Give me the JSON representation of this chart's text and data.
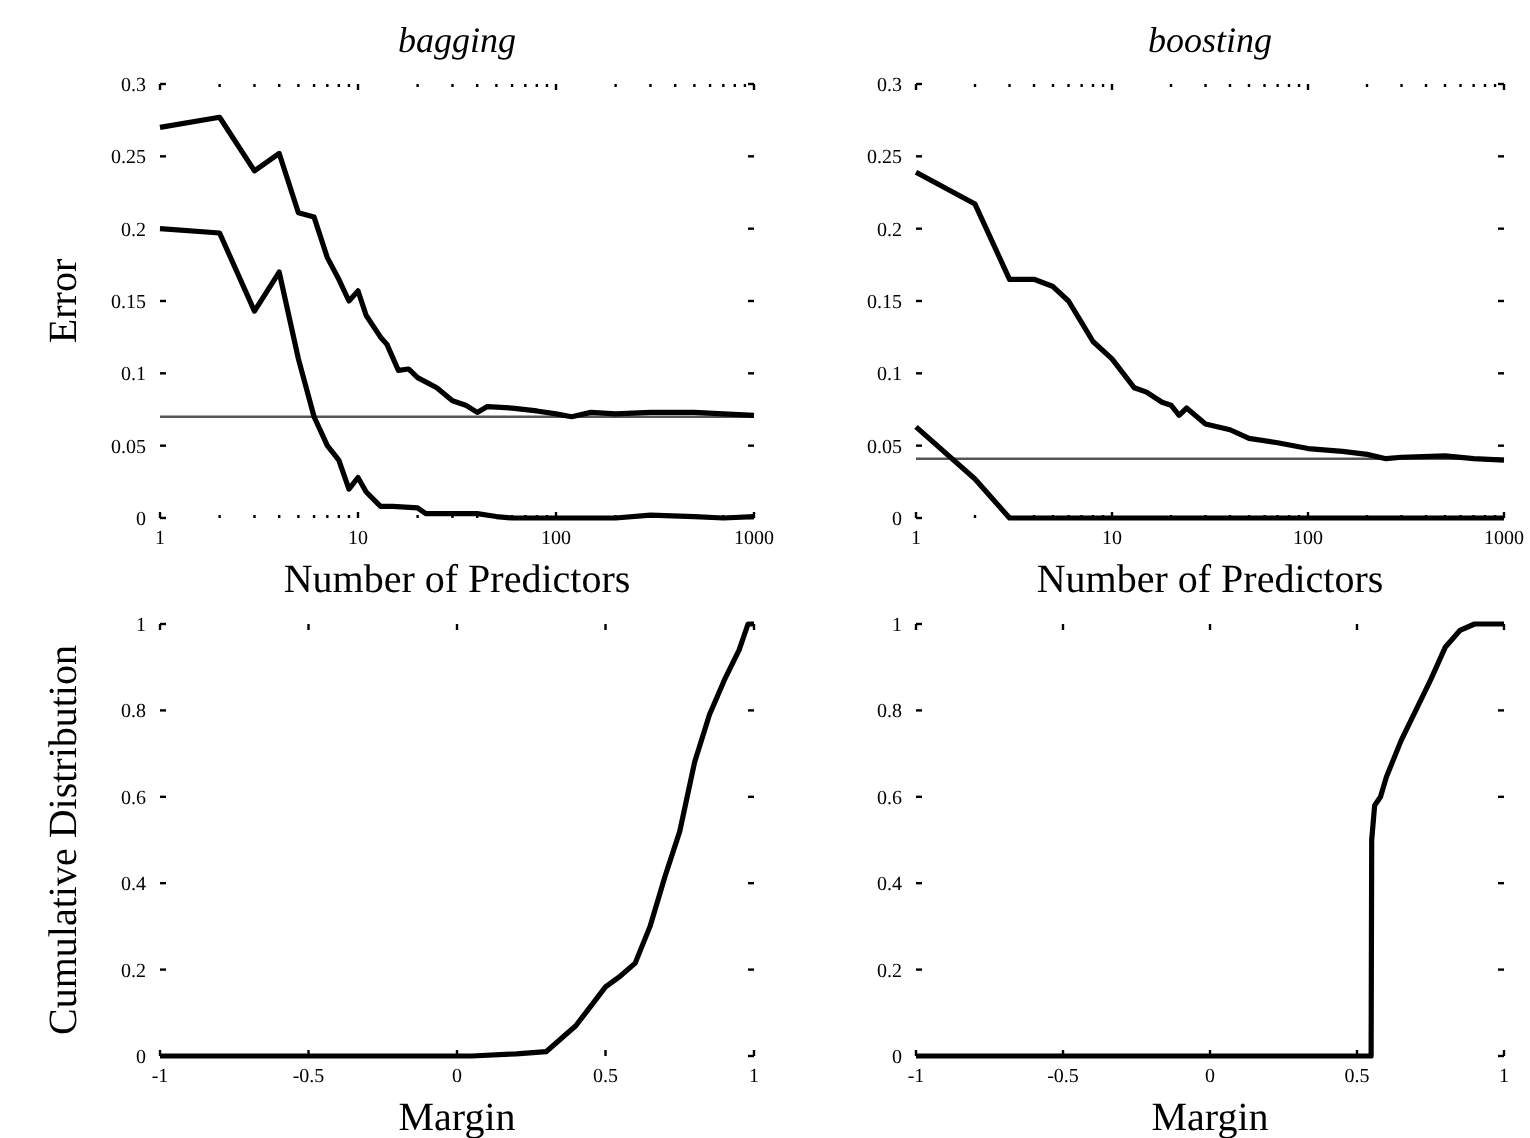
{
  "chart_data": [
    {
      "type": "line",
      "title": "bagging",
      "xlabel": "Number of Predictors",
      "ylabel": "Error",
      "log": "x",
      "xlim": [
        1,
        1000
      ],
      "ylim": [
        0,
        0.3
      ],
      "xticks": [
        1,
        {
          "value": 2,
          "label": null
        },
        {
          "value": 3,
          "label": null
        },
        {
          "value": 4,
          "label": null
        },
        {
          "value": 5,
          "label": null
        },
        {
          "value": 6,
          "label": null
        },
        {
          "value": 7,
          "label": null
        },
        {
          "value": 8,
          "label": null
        },
        {
          "value": 9,
          "label": null
        },
        10,
        {
          "value": 20,
          "label": null
        },
        {
          "value": 30,
          "label": null
        },
        {
          "value": 40,
          "label": null
        },
        {
          "value": 50,
          "label": null
        },
        {
          "value": 60,
          "label": null
        },
        {
          "value": 70,
          "label": null
        },
        {
          "value": 80,
          "label": null
        },
        {
          "value": 90,
          "label": null
        },
        100,
        {
          "value": 200,
          "label": null
        },
        {
          "value": 300,
          "label": null
        },
        {
          "value": 400,
          "label": null
        },
        {
          "value": 500,
          "label": null
        },
        {
          "value": 600,
          "label": null
        },
        {
          "value": 700,
          "label": null
        },
        {
          "value": 800,
          "label": null
        },
        {
          "value": 900,
          "label": null
        },
        1000
      ],
      "yticks": [
        0,
        0.05,
        0.1,
        0.15,
        0.2,
        0.25,
        0.3
      ],
      "ref_lines": [
        {
          "axis": "y",
          "value": 0.07,
          "color": "#555555"
        }
      ],
      "series": [
        {
          "color": "#000000",
          "x": [
            1,
            2,
            3,
            4,
            5,
            6,
            7,
            8,
            9,
            10,
            11,
            13,
            14,
            16,
            18,
            20,
            25,
            30,
            35,
            40,
            45,
            60,
            80,
            100,
            120,
            150,
            200,
            300,
            500,
            700,
            1000
          ],
          "values": [
            0.27,
            0.277,
            0.24,
            0.252,
            0.211,
            0.208,
            0.18,
            0.165,
            0.15,
            0.157,
            0.14,
            0.125,
            0.12,
            0.102,
            0.103,
            0.097,
            0.09,
            0.081,
            0.078,
            0.073,
            0.077,
            0.076,
            0.074,
            0.072,
            0.07,
            0.073,
            0.072,
            0.073,
            0.073,
            0.072,
            0.071
          ]
        },
        {
          "color": "#000000",
          "x": [
            1,
            2,
            3,
            4,
            5,
            6,
            7,
            8,
            9,
            10,
            11,
            13,
            15,
            20,
            22,
            40,
            50,
            60,
            200,
            300,
            500,
            700,
            1000
          ],
          "values": [
            0.2,
            0.197,
            0.143,
            0.17,
            0.11,
            0.07,
            0.05,
            0.04,
            0.02,
            0.028,
            0.018,
            0.008,
            0.008,
            0.007,
            0.003,
            0.003,
            0.001,
            0,
            0,
            0.002,
            0.001,
            0,
            0.001
          ]
        }
      ]
    },
    {
      "type": "line",
      "title": "boosting",
      "xlabel": "Number of Predictors",
      "log": "x",
      "xlim": [
        1,
        1000
      ],
      "ylim": [
        0,
        0.3
      ],
      "xticks": [
        1,
        {
          "value": 2,
          "label": null
        },
        {
          "value": 3,
          "label": null
        },
        {
          "value": 4,
          "label": null
        },
        {
          "value": 5,
          "label": null
        },
        {
          "value": 6,
          "label": null
        },
        {
          "value": 7,
          "label": null
        },
        {
          "value": 8,
          "label": null
        },
        {
          "value": 9,
          "label": null
        },
        10,
        {
          "value": 20,
          "label": null
        },
        {
          "value": 30,
          "label": null
        },
        {
          "value": 40,
          "label": null
        },
        {
          "value": 50,
          "label": null
        },
        {
          "value": 60,
          "label": null
        },
        {
          "value": 70,
          "label": null
        },
        {
          "value": 80,
          "label": null
        },
        {
          "value": 90,
          "label": null
        },
        100,
        {
          "value": 200,
          "label": null
        },
        {
          "value": 300,
          "label": null
        },
        {
          "value": 400,
          "label": null
        },
        {
          "value": 500,
          "label": null
        },
        {
          "value": 600,
          "label": null
        },
        {
          "value": 700,
          "label": null
        },
        {
          "value": 800,
          "label": null
        },
        {
          "value": 900,
          "label": null
        },
        1000
      ],
      "yticks": [
        0,
        0.05,
        0.1,
        0.15,
        0.2,
        0.25,
        0.3
      ],
      "ref_lines": [
        {
          "axis": "y",
          "value": 0.041,
          "color": "#555555"
        }
      ],
      "series": [
        {
          "color": "#000000",
          "x": [
            1,
            2,
            3,
            4,
            5,
            6,
            7,
            8,
            10,
            13,
            15,
            18,
            20,
            22,
            24,
            30,
            40,
            50,
            70,
            100,
            150,
            200,
            250,
            300,
            500,
            700,
            1000
          ],
          "values": [
            0.239,
            0.217,
            0.165,
            0.165,
            0.16,
            0.15,
            0.135,
            0.122,
            0.11,
            0.09,
            0.087,
            0.08,
            0.078,
            0.071,
            0.076,
            0.065,
            0.061,
            0.055,
            0.052,
            0.048,
            0.046,
            0.044,
            0.041,
            0.042,
            0.043,
            0.041,
            0.04
          ]
        },
        {
          "color": "#000000",
          "x": [
            1,
            2,
            3,
            1000
          ],
          "values": [
            0.063,
            0.027,
            0,
            0
          ]
        }
      ]
    },
    {
      "type": "line",
      "xlabel": "Margin",
      "ylabel": "Cumulative Distribution",
      "xlim": [
        -1,
        1
      ],
      "ylim": [
        0,
        1
      ],
      "xticks": [
        -1,
        -0.5,
        0,
        0.5,
        1
      ],
      "yticks": [
        0,
        0.2,
        0.4,
        0.6,
        0.8,
        1
      ],
      "series": [
        {
          "color": "#000000",
          "x": [
            -1,
            0.05,
            0.2,
            0.3,
            0.35,
            0.4,
            0.45,
            0.5,
            0.55,
            0.6,
            0.65,
            0.7,
            0.75,
            0.8,
            0.85,
            0.9,
            0.95,
            0.98,
            1
          ],
          "values": [
            0,
            0,
            0.005,
            0.01,
            0.04,
            0.07,
            0.115,
            0.16,
            0.185,
            0.215,
            0.3,
            0.415,
            0.52,
            0.68,
            0.79,
            0.87,
            0.94,
            1,
            1
          ]
        }
      ]
    },
    {
      "type": "line",
      "xlabel": "Margin",
      "xlim": [
        -1,
        1
      ],
      "ylim": [
        0,
        1
      ],
      "xticks": [
        -1,
        -0.5,
        0,
        0.5,
        1
      ],
      "yticks": [
        0,
        0.2,
        0.4,
        0.6,
        0.8,
        1
      ],
      "series": [
        {
          "color": "#000000",
          "x": [
            -1,
            0.548,
            0.55,
            0.56,
            0.58,
            0.6,
            0.65,
            0.7,
            0.75,
            0.8,
            0.85,
            0.9,
            1
          ],
          "values": [
            0,
            0,
            0.5,
            0.58,
            0.6,
            0.646,
            0.73,
            0.8,
            0.87,
            0.946,
            0.985,
            1,
            1
          ]
        }
      ]
    }
  ]
}
